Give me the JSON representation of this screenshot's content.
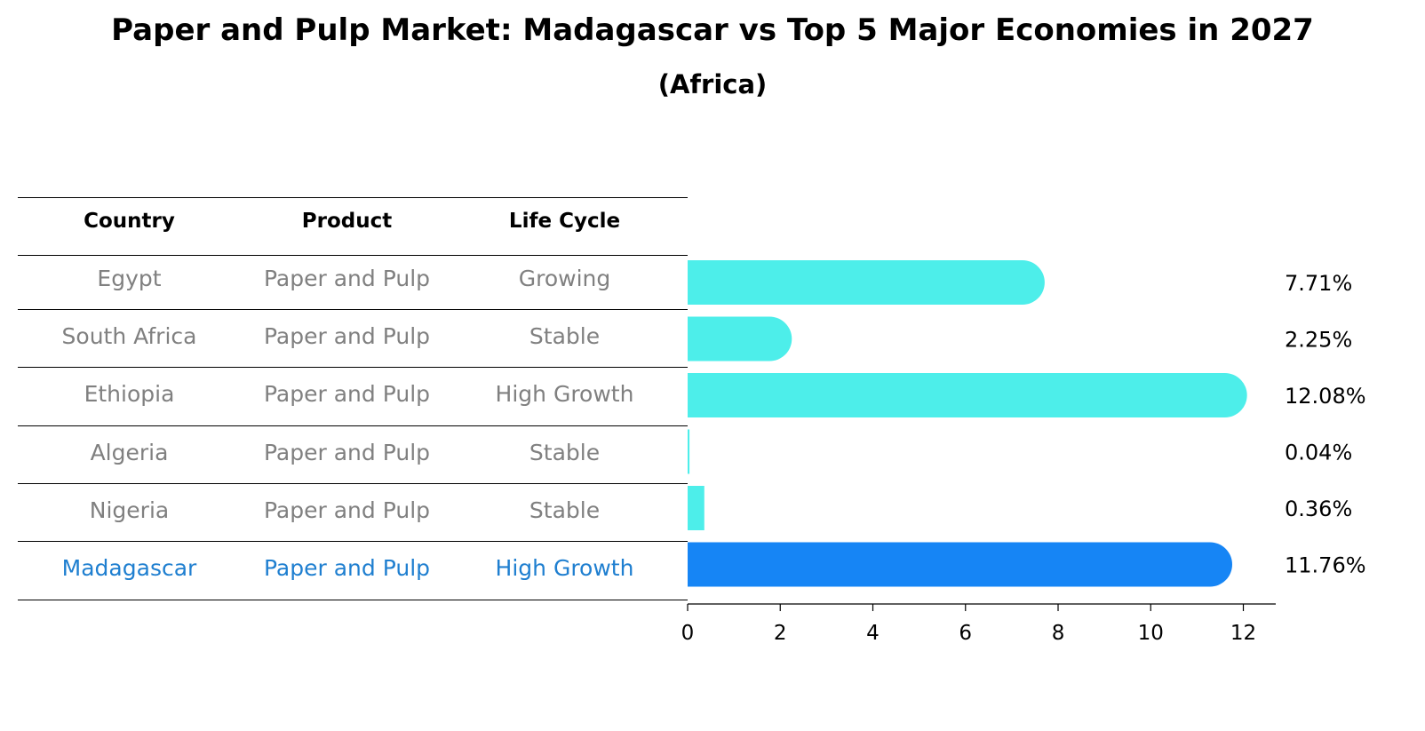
{
  "header": {
    "title": "Paper and Pulp Market: Madagascar vs Top 5 Major Economies in 2027",
    "subtitle": "(Africa)"
  },
  "table": {
    "columns": [
      "Country",
      "Product",
      "Life Cycle"
    ],
    "rows": [
      {
        "country": "Egypt",
        "product": "Paper and Pulp",
        "life_cycle": "Growing",
        "highlight": false
      },
      {
        "country": "South Africa",
        "product": "Paper and Pulp",
        "life_cycle": "Stable",
        "highlight": false
      },
      {
        "country": "Ethiopia",
        "product": "Paper and Pulp",
        "life_cycle": "High Growth",
        "highlight": false
      },
      {
        "country": "Algeria",
        "product": "Paper and Pulp",
        "life_cycle": "Stable",
        "highlight": false
      },
      {
        "country": "Nigeria",
        "product": "Paper and Pulp",
        "life_cycle": "Stable",
        "highlight": false
      },
      {
        "country": "Madagascar",
        "product": "Paper and Pulp",
        "life_cycle": "High Growth",
        "highlight": true
      }
    ]
  },
  "chart_data": {
    "type": "bar",
    "orientation": "horizontal",
    "categories": [
      "Egypt",
      "South Africa",
      "Ethiopia",
      "Algeria",
      "Nigeria",
      "Madagascar"
    ],
    "values": [
      7.71,
      2.25,
      12.08,
      0.04,
      0.36,
      11.76
    ],
    "value_labels": [
      "7.71%",
      "2.25%",
      "12.08%",
      "0.04%",
      "0.36%",
      "11.76%"
    ],
    "xlim": [
      0,
      12.7
    ],
    "xticks": [
      0,
      2,
      4,
      6,
      8,
      10,
      12
    ],
    "highlight_category": "Madagascar",
    "title": "Paper and Pulp Market: Madagascar vs Top 5 Major Economies in 2027",
    "subtitle": "(Africa)",
    "xlabel": "",
    "ylabel": ""
  },
  "colors": {
    "bar": "#4DEEEA",
    "highlight_bar": "#1685F5",
    "text_muted": "#808080",
    "text_highlight": "#1F7FD0",
    "rule": "#000000"
  }
}
